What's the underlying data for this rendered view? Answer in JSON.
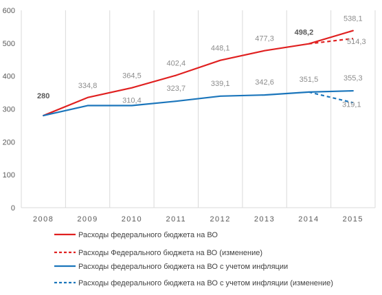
{
  "chart_data": {
    "type": "line",
    "categories": [
      "2008",
      "2009",
      "2010",
      "2011",
      "2012",
      "2013",
      "2014",
      "2015"
    ],
    "ylim": [
      0,
      600
    ],
    "yticks": [
      "0",
      "100",
      "200",
      "300",
      "400",
      "500",
      "600"
    ],
    "grid": "vertical",
    "legend_position": "bottom",
    "series": [
      {
        "name": "Расходы федерального бюджета на ВО",
        "color": "#e02020",
        "style": "solid",
        "x": [
          "2008",
          "2009",
          "2010",
          "2011",
          "2012",
          "2013",
          "2014",
          "2015"
        ],
        "values": [
          280,
          334.8,
          364.5,
          402.4,
          448.1,
          477.3,
          498.2,
          538.1
        ],
        "labels": [
          "280",
          "334,8",
          "364,5",
          "402,4",
          "448,1",
          "477,3",
          "498,2",
          "538,1"
        ]
      },
      {
        "name": "Расходы Федерального бюджета на ВО (изменение)",
        "color": "#e02020",
        "style": "dashed",
        "x": [
          "2014",
          "2015"
        ],
        "values": [
          498.2,
          514.3
        ],
        "labels": [
          "",
          "514,3"
        ]
      },
      {
        "name": "Расходы федерального бюджета на ВО с учетом инфляции",
        "color": "#1a75bb",
        "style": "solid",
        "x": [
          "2008",
          "2009",
          "2010",
          "2011",
          "2012",
          "2013",
          "2014",
          "2015"
        ],
        "values": [
          280,
          310.4,
          310.4,
          323.7,
          339.1,
          342.6,
          351.5,
          355.3
        ],
        "labels": [
          "",
          "",
          "310,4",
          "323,7",
          "339,1",
          "342,6",
          "351,5",
          "355,3"
        ]
      },
      {
        "name": "Расходы федерального бюджета на ВО с учетом инфляции (изменение)",
        "color": "#1a75bb",
        "style": "dashed",
        "x": [
          "2014",
          "2015"
        ],
        "values": [
          351.5,
          319.1
        ],
        "labels": [
          "",
          "319,1"
        ]
      }
    ]
  }
}
